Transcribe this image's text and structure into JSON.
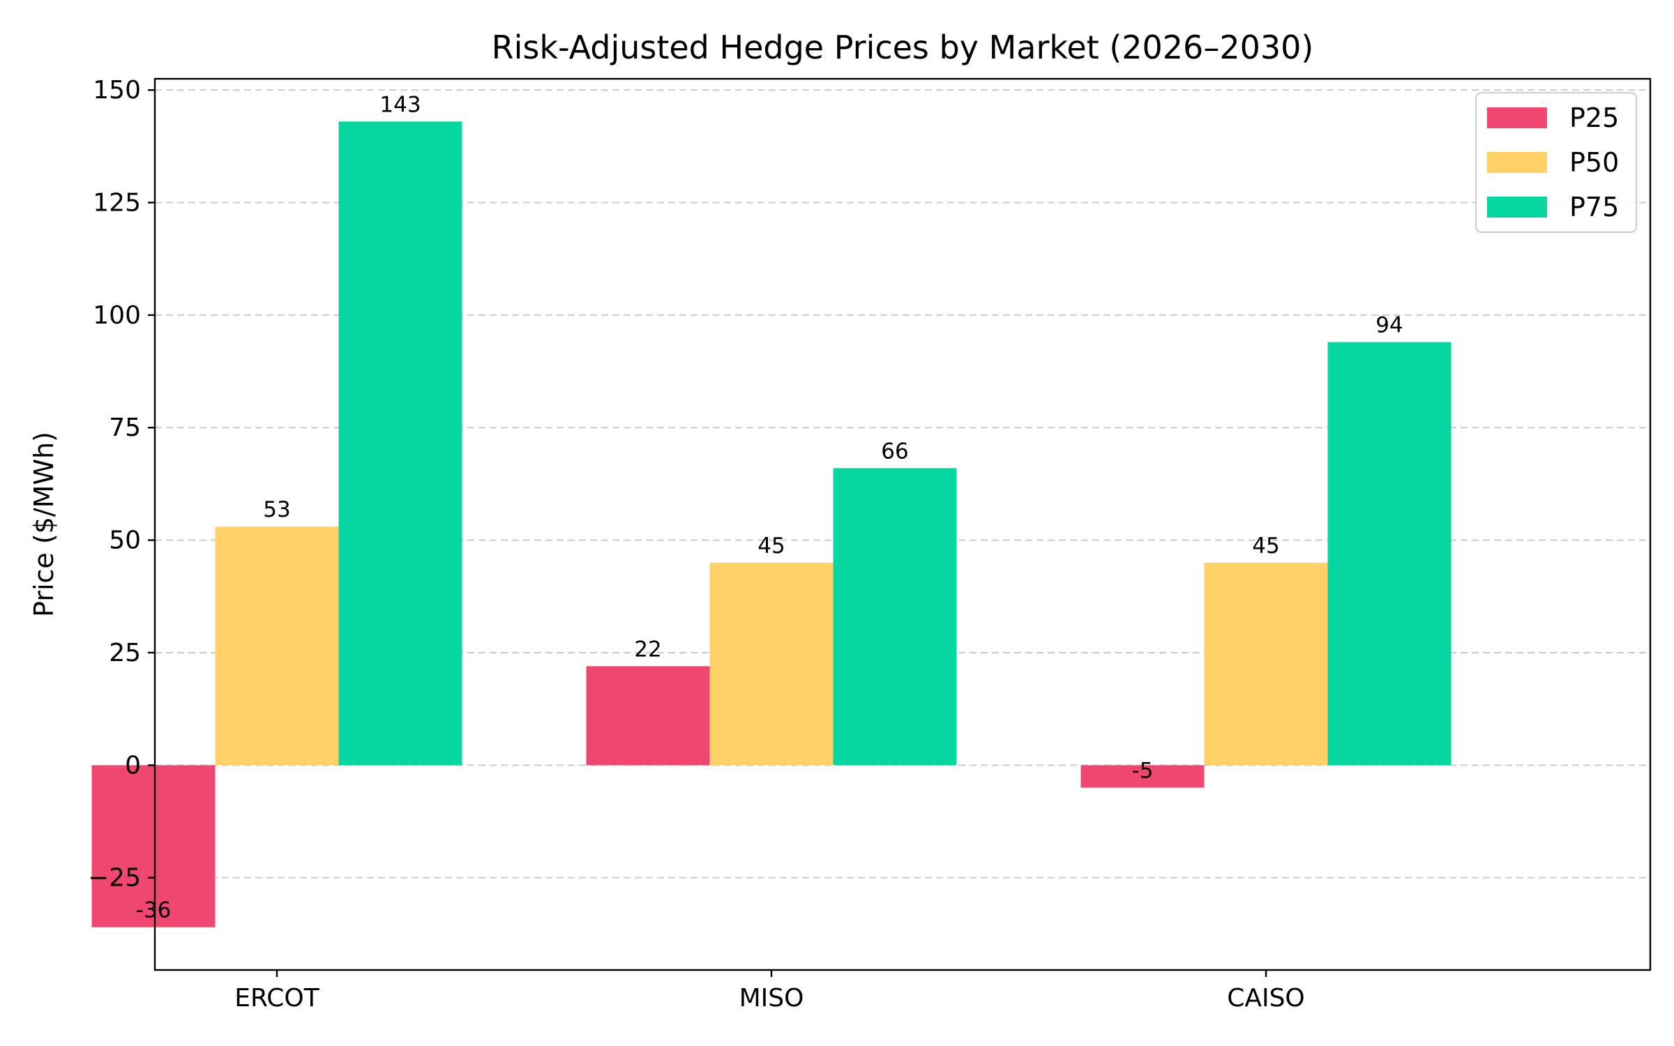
{
  "chart_data": {
    "type": "bar",
    "title": "Risk-Adjusted Hedge Prices by Market (2026–2030)",
    "xlabel": "",
    "ylabel": "Price ($/MWh)",
    "categories": [
      "ERCOT",
      "MISO",
      "CAISO"
    ],
    "series": [
      {
        "name": "P25",
        "color": "#EF476F",
        "values": [
          -36,
          22,
          -5
        ],
        "labels": [
          "-36",
          "22",
          "-5"
        ]
      },
      {
        "name": "P50",
        "color": "#FFD166",
        "values": [
          53,
          45,
          45
        ],
        "labels": [
          "53",
          "45",
          "45"
        ]
      },
      {
        "name": "P75",
        "color": "#06D6A0",
        "values": [
          143,
          66,
          94
        ],
        "labels": [
          "143",
          "66",
          "94"
        ]
      }
    ],
    "ylim": [
      -45.5,
      152.5
    ],
    "yticks": [
      -25,
      0,
      25,
      50,
      75,
      100,
      125,
      150
    ],
    "ytick_labels": [
      "−25",
      "0",
      "25",
      "50",
      "75",
      "100",
      "125",
      "150"
    ],
    "grid": "y-dashed",
    "legend_position": "top-right"
  }
}
